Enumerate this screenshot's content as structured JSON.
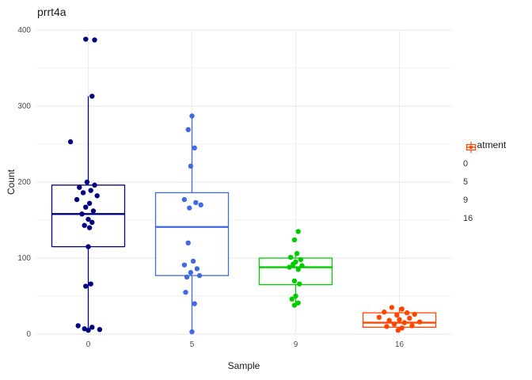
{
  "chart_data": {
    "type": "boxplot",
    "title": "prrt4a",
    "xlabel": "Sample",
    "ylabel": "Count",
    "legend_title": "Treatment",
    "legend_position": "right",
    "grid": "on",
    "ylim": [
      0,
      400
    ],
    "yticks": [
      0,
      100,
      200,
      300,
      400
    ],
    "yminor_ticks": [
      50,
      150,
      250,
      350
    ],
    "categories": [
      "0",
      "5",
      "9",
      "16"
    ],
    "series": [
      {
        "name": "0",
        "color": "#000080",
        "box": {
          "q1": 115,
          "median": 158,
          "q3": 196,
          "whisker_low": 5,
          "whisker_high": 313
        },
        "points": [
          [
            -2,
            388
          ],
          [
            5,
            387
          ],
          [
            3,
            313
          ],
          [
            -14,
            253
          ],
          [
            -1,
            200
          ],
          [
            5,
            196
          ],
          [
            -7,
            193
          ],
          [
            2,
            189
          ],
          [
            -4,
            186
          ],
          [
            7,
            182
          ],
          [
            -9,
            177
          ],
          [
            1,
            172
          ],
          [
            -2,
            167
          ],
          [
            4,
            162
          ],
          [
            -5,
            158
          ],
          [
            0,
            151
          ],
          [
            3,
            147
          ],
          [
            -3,
            143
          ],
          [
            1,
            140
          ],
          [
            0,
            115
          ],
          [
            2,
            66
          ],
          [
            -2,
            63
          ],
          [
            -8,
            11
          ],
          [
            3,
            9
          ],
          [
            -3,
            7
          ],
          [
            9,
            6
          ],
          [
            0,
            5
          ]
        ]
      },
      {
        "name": "5",
        "color": "#4169E1",
        "box": {
          "q1": 77,
          "median": 141,
          "q3": 186,
          "whisker_low": 3,
          "whisker_high": 288
        },
        "points": [
          [
            0,
            287
          ],
          [
            -3,
            269
          ],
          [
            2,
            245
          ],
          [
            -1,
            221
          ],
          [
            -6,
            177
          ],
          [
            3,
            173
          ],
          [
            7,
            170
          ],
          [
            -2,
            166
          ],
          [
            -3,
            120
          ],
          [
            1,
            96
          ],
          [
            -6,
            91
          ],
          [
            4,
            86
          ],
          [
            -1,
            81
          ],
          [
            6,
            77
          ],
          [
            -4,
            75
          ],
          [
            -5,
            55
          ],
          [
            2,
            40
          ],
          [
            0,
            3
          ]
        ]
      },
      {
        "name": "9",
        "color": "#00CD00",
        "box": {
          "q1": 65,
          "median": 88,
          "q3": 100,
          "whisker_low": 37,
          "whisker_high": 106
        },
        "points": [
          [
            2,
            135
          ],
          [
            -1,
            124
          ],
          [
            1,
            106
          ],
          [
            -4,
            101
          ],
          [
            4,
            98
          ],
          [
            0,
            95
          ],
          [
            -2,
            92
          ],
          [
            5,
            90
          ],
          [
            -5,
            88
          ],
          [
            2,
            85
          ],
          [
            -1,
            70
          ],
          [
            3,
            66
          ],
          [
            0,
            50
          ],
          [
            -3,
            46
          ],
          [
            2,
            41
          ],
          [
            -1,
            38
          ]
        ]
      },
      {
        "name": "16",
        "color": "#FF4500",
        "box": {
          "q1": 9,
          "median": 15,
          "q3": 28,
          "whisker_low": 3,
          "whisker_high": 35
        },
        "points": [
          [
            -6,
            35
          ],
          [
            2,
            33
          ],
          [
            -12,
            29
          ],
          [
            6,
            28
          ],
          [
            12,
            26
          ],
          [
            -2,
            25
          ],
          [
            -16,
            22
          ],
          [
            8,
            21
          ],
          [
            0,
            19
          ],
          [
            -8,
            18
          ],
          [
            16,
            16
          ],
          [
            4,
            15
          ],
          [
            -4,
            13
          ],
          [
            10,
            11
          ],
          [
            -10,
            10
          ],
          [
            2,
            8
          ],
          [
            -1,
            5
          ]
        ]
      }
    ]
  }
}
